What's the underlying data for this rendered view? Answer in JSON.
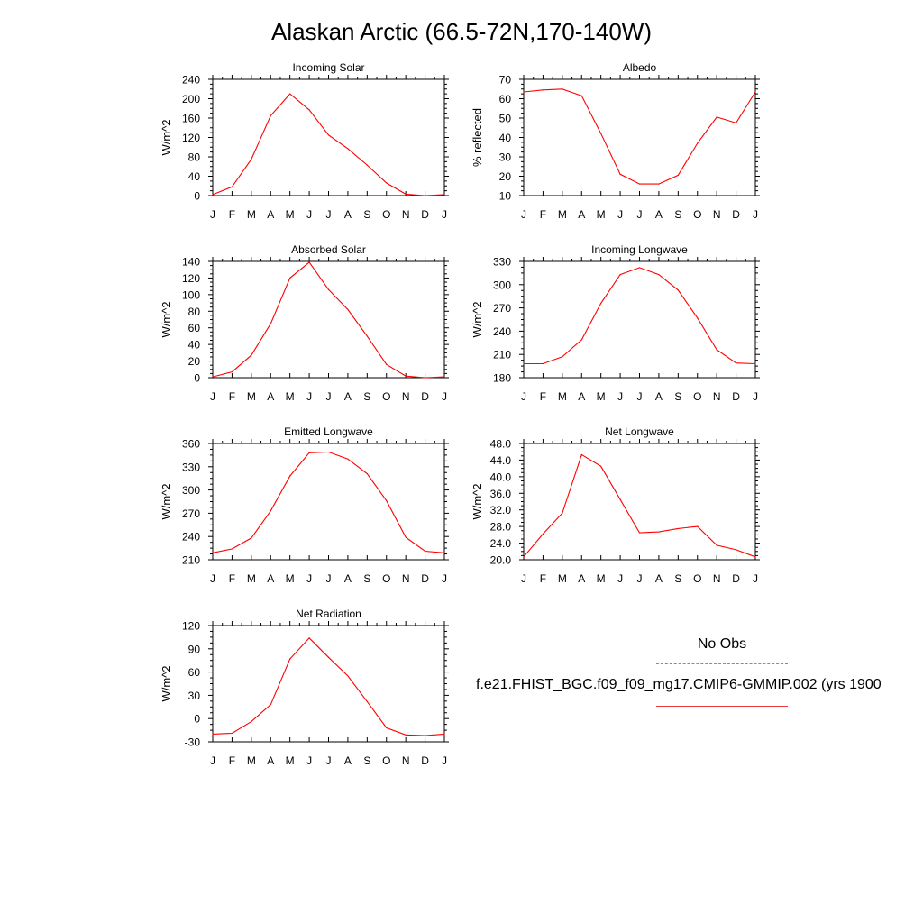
{
  "figure": {
    "title": "Alaskan Arctic (66.5-72N,170-140W)",
    "line_color": "#ff0000",
    "obs_line_color": "#7b7bff"
  },
  "legend": {
    "obs_label": "No Obs",
    "model_label": "f.e21.FHIST_BGC.f09_f09_mg17.CMIP6-GMMIP.002 (yrs 1900"
  },
  "chart_data": [
    {
      "type": "line",
      "title": "Incoming Solar",
      "ylabel": "W/m^2",
      "categories": [
        "J",
        "F",
        "M",
        "A",
        "M",
        "J",
        "J",
        "A",
        "S",
        "O",
        "N",
        "D",
        "J"
      ],
      "ylim": [
        0,
        240
      ],
      "yticks": [
        0,
        40,
        80,
        120,
        160,
        200,
        240
      ],
      "ytick_labels": [
        "0",
        "40",
        "80",
        "120",
        "160",
        "200",
        "240"
      ],
      "series": [
        {
          "values": [
            2,
            18,
            75,
            165,
            210,
            177,
            125,
            97,
            63,
            26,
            3,
            0,
            2
          ]
        }
      ]
    },
    {
      "type": "line",
      "title": "Albedo",
      "ylabel": "% reflected",
      "categories": [
        "J",
        "F",
        "M",
        "A",
        "M",
        "J",
        "J",
        "A",
        "S",
        "O",
        "N",
        "D",
        "J"
      ],
      "ylim": [
        10,
        70
      ],
      "yticks": [
        10,
        20,
        30,
        40,
        50,
        60,
        70
      ],
      "ytick_labels": [
        "10",
        "20",
        "30",
        "40",
        "50",
        "60",
        "70"
      ],
      "series": [
        {
          "values": [
            63.5,
            64.5,
            65,
            61.5,
            42,
            21,
            16,
            16,
            20.5,
            37,
            50.5,
            47.5,
            63.5
          ]
        }
      ]
    },
    {
      "type": "line",
      "title": "Absorbed Solar",
      "ylabel": "W/m^2",
      "categories": [
        "J",
        "F",
        "M",
        "A",
        "M",
        "J",
        "J",
        "A",
        "S",
        "O",
        "N",
        "D",
        "J"
      ],
      "ylim": [
        0,
        140
      ],
      "yticks": [
        0,
        20,
        40,
        60,
        80,
        100,
        120,
        140
      ],
      "ytick_labels": [
        "0",
        "20",
        "40",
        "60",
        "80",
        "100",
        "120",
        "140"
      ],
      "series": [
        {
          "values": [
            1,
            7,
            27,
            65,
            120,
            139,
            106,
            82,
            50,
            16,
            2,
            0,
            1
          ]
        }
      ]
    },
    {
      "type": "line",
      "title": "Incoming Longwave",
      "ylabel": "W/m^2",
      "categories": [
        "J",
        "F",
        "M",
        "A",
        "M",
        "J",
        "J",
        "A",
        "S",
        "O",
        "N",
        "D",
        "J"
      ],
      "ylim": [
        180,
        330
      ],
      "yticks": [
        180,
        210,
        240,
        270,
        300,
        330
      ],
      "ytick_labels": [
        "180",
        "210",
        "240",
        "270",
        "300",
        "330"
      ],
      "series": [
        {
          "values": [
            198,
            198,
            207,
            229,
            276,
            313,
            322,
            313,
            293,
            257,
            216,
            199,
            198
          ]
        }
      ]
    },
    {
      "type": "line",
      "title": "Emitted Longwave",
      "ylabel": "W/m^2",
      "categories": [
        "J",
        "F",
        "M",
        "A",
        "M",
        "J",
        "J",
        "A",
        "S",
        "O",
        "N",
        "D",
        "J"
      ],
      "ylim": [
        210,
        360
      ],
      "yticks": [
        210,
        240,
        270,
        300,
        330,
        360
      ],
      "ytick_labels": [
        "210",
        "240",
        "270",
        "300",
        "330",
        "360"
      ],
      "series": [
        {
          "values": [
            219,
            224,
            238,
            273,
            318,
            348,
            349,
            340,
            321,
            286,
            239,
            221,
            219
          ]
        }
      ]
    },
    {
      "type": "line",
      "title": "Net Longwave",
      "ylabel": "W/m^2",
      "categories": [
        "J",
        "F",
        "M",
        "A",
        "M",
        "J",
        "J",
        "A",
        "S",
        "O",
        "N",
        "D",
        "J"
      ],
      "ylim": [
        20,
        48
      ],
      "yticks": [
        20,
        24,
        28,
        32,
        36,
        40,
        44,
        48
      ],
      "ytick_labels": [
        "20.0",
        "24.0",
        "28.0",
        "32.0",
        "36.0",
        "40.0",
        "44.0",
        "48.0"
      ],
      "series": [
        {
          "values": [
            20.7,
            26.2,
            31.2,
            45.3,
            42.5,
            34.5,
            26.5,
            26.7,
            27.5,
            28,
            23.5,
            22.4,
            20.7
          ]
        }
      ]
    },
    {
      "type": "line",
      "title": "Net Radiation",
      "ylabel": "W/m^2",
      "categories": [
        "J",
        "F",
        "M",
        "A",
        "M",
        "J",
        "J",
        "A",
        "S",
        "O",
        "N",
        "D",
        "J"
      ],
      "ylim": [
        -30,
        120
      ],
      "yticks": [
        -30,
        0,
        30,
        60,
        90,
        120
      ],
      "ytick_labels": [
        "-30",
        "0",
        "30",
        "60",
        "90",
        "120"
      ],
      "series": [
        {
          "values": [
            -20,
            -19,
            -4,
            18,
            77,
            104,
            79,
            55,
            22,
            -12,
            -21,
            -22,
            -20
          ]
        }
      ]
    }
  ]
}
